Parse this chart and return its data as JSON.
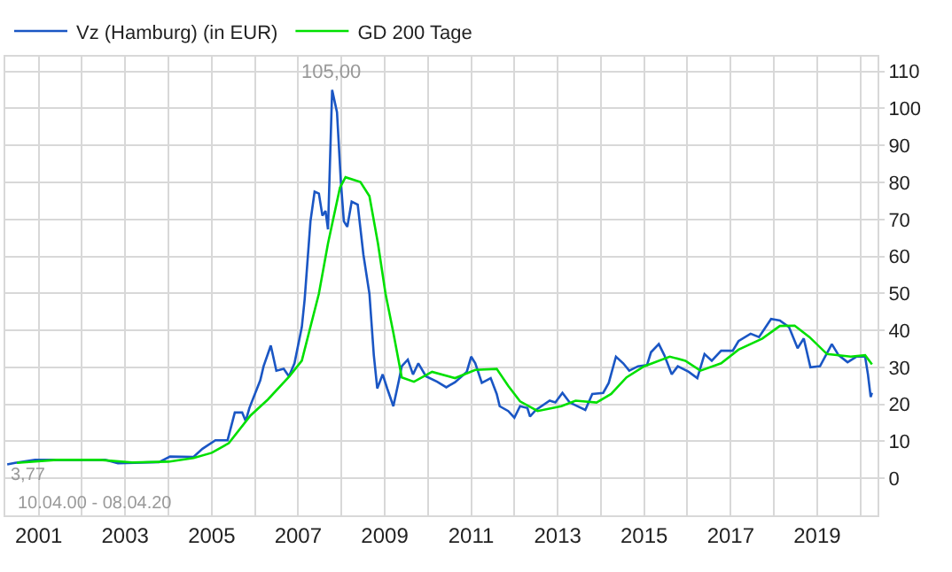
{
  "chart_data": {
    "type": "line",
    "xlim": [
      "2000-03-25",
      "2020-05-25"
    ],
    "ylim": [
      -10,
      114
    ],
    "xticks": [
      {
        "value": "2001-01-01",
        "label": "2001"
      },
      {
        "value": "2002-01-01",
        "label": null
      },
      {
        "value": "2003-01-01",
        "label": "2003"
      },
      {
        "value": "2004-01-01",
        "label": null
      },
      {
        "value": "2005-01-01",
        "label": "2005"
      },
      {
        "value": "2006-01-01",
        "label": null
      },
      {
        "value": "2007-01-01",
        "label": "2007"
      },
      {
        "value": "2008-01-01",
        "label": null
      },
      {
        "value": "2009-01-01",
        "label": "2009"
      },
      {
        "value": "2010-01-01",
        "label": null
      },
      {
        "value": "2011-01-01",
        "label": "2011"
      },
      {
        "value": "2012-01-01",
        "label": null
      },
      {
        "value": "2013-01-01",
        "label": "2013"
      },
      {
        "value": "2014-01-01",
        "label": null
      },
      {
        "value": "2015-01-01",
        "label": "2015"
      },
      {
        "value": "2016-01-01",
        "label": null
      },
      {
        "value": "2017-01-01",
        "label": "2017"
      },
      {
        "value": "2018-01-01",
        "label": null
      },
      {
        "value": "2019-01-01",
        "label": "2019"
      },
      {
        "value": "2020-01-01",
        "label": null
      }
    ],
    "yticks": [
      0,
      10,
      20,
      30,
      40,
      50,
      60,
      70,
      80,
      90,
      100,
      110
    ],
    "grid": true,
    "legend": "top left",
    "marker": "none",
    "line_style": "solid",
    "series": [
      {
        "name": "Vz (Hamburg) (in EUR)",
        "color": "#1a56c4",
        "x": [
          "2000-04-10",
          "2000-06-15",
          "2000-12-01",
          "2002-07-15",
          "2002-11-01",
          "2003-10-15",
          "2004-01-15",
          "2004-08-01",
          "2004-10-15",
          "2005-02-01",
          "2005-05-15",
          "2005-07-15",
          "2005-09-15",
          "2005-10-15",
          "2005-11-15",
          "2006-02-15",
          "2006-03-15",
          "2006-05-15",
          "2006-07-01",
          "2006-09-01",
          "2006-10-15",
          "2006-12-01",
          "2007-02-01",
          "2007-02-25",
          "2007-04-15",
          "2007-05-20",
          "2007-06-25",
          "2007-07-25",
          "2007-08-20",
          "2007-09-10",
          "2007-10-15",
          "2007-11-25",
          "2007-12-28",
          "2008-01-22",
          "2008-02-20",
          "2008-03-28",
          "2008-05-18",
          "2008-07-05",
          "2008-08-25",
          "2008-10-01",
          "2008-10-30",
          "2008-12-15",
          "2009-01-22",
          "2009-03-15",
          "2009-05-01",
          "2009-05-25",
          "2009-07-15",
          "2009-08-28",
          "2009-10-12",
          "2009-12-15",
          "2010-03-20",
          "2010-06-05",
          "2010-08-18",
          "2010-11-25",
          "2011-01-01",
          "2011-02-05",
          "2011-04-01",
          "2011-06-15",
          "2011-08-05",
          "2011-08-30",
          "2011-11-10",
          "2012-01-01",
          "2012-02-18",
          "2012-04-20",
          "2012-05-12",
          "2012-07-01",
          "2012-10-25",
          "2012-12-12",
          "2013-02-10",
          "2013-04-12",
          "2013-08-22",
          "2013-10-20",
          "2014-01-20",
          "2014-03-08",
          "2014-05-08",
          "2014-07-08",
          "2014-08-28",
          "2014-11-10",
          "2015-01-25",
          "2015-02-28",
          "2015-05-05",
          "2015-06-20",
          "2015-08-22",
          "2015-10-12",
          "2016-01-12",
          "2016-03-25",
          "2016-05-25",
          "2016-07-25",
          "2016-10-12",
          "2017-01-18",
          "2017-03-08",
          "2017-06-18",
          "2017-08-28",
          "2017-12-08",
          "2018-02-20",
          "2018-05-08",
          "2018-07-20",
          "2018-09-10",
          "2018-11-05",
          "2019-01-25",
          "2019-05-05",
          "2019-07-01",
          "2019-09-15",
          "2019-11-28",
          "2020-02-10",
          "2020-03-05",
          "2020-03-28",
          "2020-04-08"
        ],
        "values": [
          3.77,
          4.2,
          5.0,
          5.0,
          4.1,
          4.4,
          5.9,
          5.8,
          8.0,
          10.3,
          10.3,
          17.8,
          17.8,
          15.5,
          19.0,
          26.5,
          30.3,
          35.9,
          29.1,
          29.6,
          27.6,
          31.1,
          40.9,
          48.4,
          69.5,
          77.5,
          77,
          71,
          72.3,
          67.3,
          105,
          99,
          80.1,
          69.5,
          68,
          74.8,
          74,
          60.5,
          49.9,
          33.3,
          24.3,
          28.1,
          24.3,
          19.5,
          26.5,
          30.3,
          32.1,
          28.1,
          31.1,
          27.6,
          26.1,
          24.6,
          26,
          28.8,
          32.9,
          31.1,
          25.8,
          27.1,
          22.8,
          19.5,
          18.2,
          16.4,
          19.5,
          19.0,
          16.7,
          18.5,
          21.0,
          20.5,
          23.1,
          20.5,
          18.5,
          22.8,
          23.1,
          25.8,
          32.9,
          31.1,
          29.1,
          30.3,
          30.6,
          34.1,
          36.3,
          33.3,
          28.1,
          30.3,
          28.8,
          27.1,
          33.6,
          31.8,
          34.5,
          34.5,
          37.1,
          39.1,
          38.2,
          43.1,
          42.7,
          40.9,
          35.2,
          37.8,
          30.0,
          30.3,
          36.3,
          33.3,
          31.4,
          32.9,
          32.9,
          28.1,
          22.0,
          23.1
        ]
      },
      {
        "name": "GD 200 Tage",
        "color": "#00e000",
        "x": [
          "2000-07-01",
          "2001-06-01",
          "2002-06-01",
          "2003-03-01",
          "2004-01-01",
          "2004-08-01",
          "2005-01-01",
          "2005-05-25",
          "2005-11-25",
          "2006-04-20",
          "2006-10-20",
          "2007-02-01",
          "2007-06-25",
          "2007-09-10",
          "2007-12-20",
          "2008-02-05",
          "2008-06-10",
          "2008-08-25",
          "2008-11-05",
          "2009-01-08",
          "2009-03-15",
          "2009-05-25",
          "2009-09-05",
          "2010-02-05",
          "2010-08-18",
          "2011-02-05",
          "2011-08-05",
          "2011-11-10",
          "2012-02-18",
          "2012-07-15",
          "2013-02-01",
          "2013-06-01",
          "2013-11-25",
          "2014-03-28",
          "2014-08-05",
          "2015-01-01",
          "2015-08-05",
          "2015-12-15",
          "2016-04-20",
          "2016-10-12",
          "2017-03-08",
          "2017-09-25",
          "2018-02-20",
          "2018-06-25",
          "2018-10-28",
          "2019-03-25",
          "2019-10-12",
          "2020-02-10",
          "2020-04-08"
        ],
        "values": [
          4.2,
          5.0,
          5.0,
          4.3,
          4.5,
          5.5,
          6.9,
          9.5,
          17,
          21.3,
          27.6,
          31.8,
          49.9,
          63.5,
          78.6,
          81.4,
          80.1,
          76.3,
          63.5,
          49.9,
          39.4,
          27.3,
          26.1,
          28.8,
          27.1,
          29.3,
          29.6,
          25,
          20.8,
          18.2,
          19.5,
          21,
          20.5,
          22.8,
          27.3,
          30.3,
          32.9,
          31.8,
          29.1,
          31.1,
          34.8,
          37.8,
          41.2,
          41.3,
          38.2,
          33.6,
          32.9,
          33.3,
          30.8
        ]
      }
    ],
    "annotations": [
      {
        "text": "105,00",
        "x": "2007-10-15",
        "y": 105
      },
      {
        "text": "3,77",
        "x": "2000-04-10",
        "y": 3.77
      },
      "10.04.00 - 08.04.20"
    ]
  }
}
